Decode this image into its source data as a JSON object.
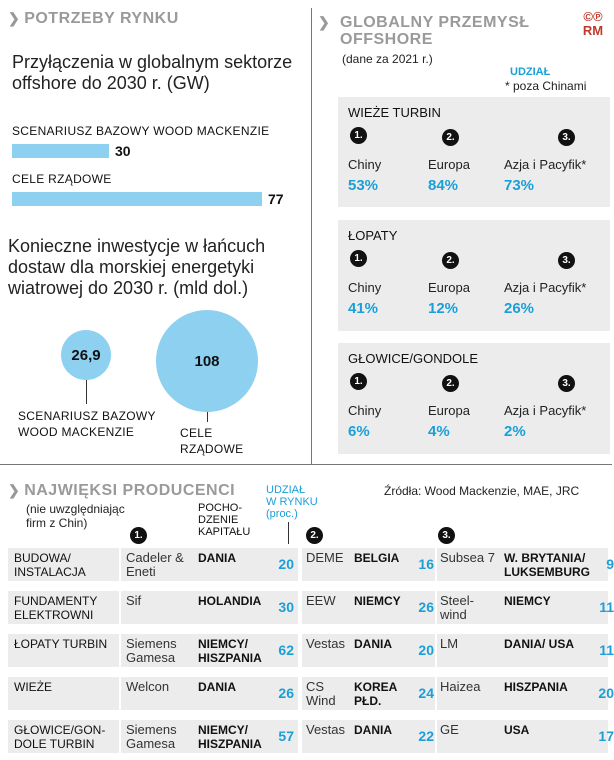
{
  "left": {
    "title": "POTRZEBY RYNKU",
    "connections": {
      "heading": "Przyłączenia w globalnym sektorze offshore do 2030 r. (GW)",
      "items": [
        {
          "label": "SCENARIUSZ BAZOWY WOOD MACKENZIE",
          "value": "30",
          "amount": 30
        },
        {
          "label": "CELE RZĄDOWE",
          "value": "77",
          "amount": 77
        }
      ]
    },
    "investment": {
      "heading": "Konieczne inwestycje w łańcuch dostaw dla morskiej energetyki wiatrowej do 2030 r. (mld dol.)",
      "items": [
        {
          "label": "SCENARIUSZ BAZOWY WOOD MACKENZIE",
          "value": "26,9",
          "amount": 26.9
        },
        {
          "label": "CELE RZĄDOWE",
          "value": "108",
          "amount": 108
        }
      ]
    }
  },
  "right": {
    "title": "GLOBALNY PRZEMYSŁ OFFSHORE",
    "subtitle": "(dane za 2021 r.)",
    "logo": "©℗ RM",
    "share_label": "UDZIAŁ",
    "note": "* poza Chinami",
    "panels": [
      {
        "title": "WIEŻE TURBIN",
        "entries": [
          {
            "rank": "1.",
            "region": "Chiny",
            "share": "53%"
          },
          {
            "rank": "2.",
            "region": "Europa",
            "share": "84%"
          },
          {
            "rank": "3.",
            "region": "Azja i Pacyfik*",
            "share": "73%"
          }
        ]
      },
      {
        "title": "ŁOPATY",
        "entries": [
          {
            "rank": "1.",
            "region": "Chiny",
            "share": "41%"
          },
          {
            "rank": "2.",
            "region": "Europa",
            "share": "12%"
          },
          {
            "rank": "3.",
            "region": "Azja i Pacyfik*",
            "share": "26%"
          }
        ]
      },
      {
        "title": "GŁOWICE/GONDOLE",
        "entries": [
          {
            "rank": "1.",
            "region": "Chiny",
            "share": "6%"
          },
          {
            "rank": "2.",
            "region": "Europa",
            "share": "4%"
          },
          {
            "rank": "3.",
            "region": "Azja i Pacyfik*",
            "share": "2%"
          }
        ]
      }
    ]
  },
  "bottom": {
    "title": "NAJWIĘKSI PRODUCENCI",
    "subtitle": "(nie uwzględniając firm z Chin)",
    "sources": "Źródła: Wood Mackenzie, MAE, JRC",
    "col_origin": "POCHO-DZENIE KAPITAŁU",
    "col_share": "UDZIAŁ W RYNKU (proc.)",
    "ranks": [
      "1.",
      "2.",
      "3."
    ],
    "rows": [
      {
        "category": "BUDOWA/ INSTALACJA",
        "c1": "Cadeler & Eneti",
        "o1": "DANIA",
        "s1": "20",
        "c2": "DEME",
        "o2": "BELGIA",
        "s2": "16",
        "c3": "Subsea 7",
        "o3": "W. BRYTANIA/ LUKSEMBURG",
        "s3": "9"
      },
      {
        "category": "FUNDAMENTY ELEKTROWNI",
        "c1": "Sif",
        "o1": "HOLANDIA",
        "s1": "30",
        "c2": "EEW",
        "o2": "NIEMCY",
        "s2": "26",
        "c3": "Steel-wind",
        "o3": "NIEMCY",
        "s3": "11"
      },
      {
        "category": "ŁOPATY TURBIN",
        "c1": "Siemens Gamesa",
        "o1": "NIEMCY/ HISZPANIA",
        "s1": "62",
        "c2": "Vestas",
        "o2": "DANIA",
        "s2": "20",
        "c3": "LM",
        "o3": "DANIA/ USA",
        "s3": "11"
      },
      {
        "category": "WIEŻE",
        "c1": "Welcon",
        "o1": "DANIA",
        "s1": "26",
        "c2": "CS Wind",
        "o2": "KOREA PŁD.",
        "s2": "24",
        "c3": "Haizea",
        "o3": "HISZPANIA",
        "s3": "20"
      },
      {
        "category": "GŁOWICE/GON-DOLE TURBIN",
        "c1": "Siemens Gamesa",
        "o1": "NIEMCY/ HISZPANIA",
        "s1": "57",
        "c2": "Vestas",
        "o2": "DANIA",
        "s2": "22",
        "c3": "GE",
        "o3": "USA",
        "s3": "17"
      }
    ]
  }
}
